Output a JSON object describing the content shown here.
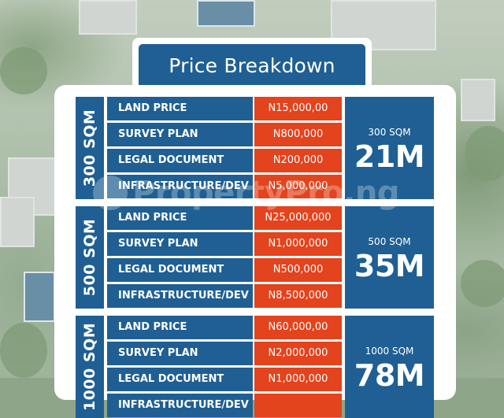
{
  "header": {
    "title": "Price Breakdown"
  },
  "watermark": "PropertyPro.ng",
  "sections": [
    {
      "label": "300 SQM",
      "rows": [
        {
          "item": "LAND PRICE",
          "price": "N15,000,00"
        },
        {
          "item": "SURVEY PLAN",
          "price": "N800,000"
        },
        {
          "item": "LEGAL DOCUMENT",
          "price": "N200,000"
        },
        {
          "item": "INFRASTRUCTURE/DEV",
          "price": "N5,000,000"
        }
      ],
      "total_label": "300 SQM",
      "total_amount": "21M"
    },
    {
      "label": "500 SQM",
      "rows": [
        {
          "item": "LAND PRICE",
          "price": "N25,000,000"
        },
        {
          "item": "SURVEY PLAN",
          "price": "N1,000,000"
        },
        {
          "item": "LEGAL DOCUMENT",
          "price": "N500,000"
        },
        {
          "item": "INFRASTRUCTURE/DEV",
          "price": "N8,500,000"
        }
      ],
      "total_label": "500 SQM",
      "total_amount": "35M"
    },
    {
      "label": "1000 SQM",
      "rows": [
        {
          "item": "LAND PRICE",
          "price": "N60,000,00"
        },
        {
          "item": "SURVEY PLAN",
          "price": "N2,000,000"
        },
        {
          "item": "LEGAL DOCUMENT",
          "price": "N1,000,000"
        },
        {
          "item": "INFRASTRUCTURE/DEV",
          "price": ""
        }
      ],
      "total_label": "1000 SQM",
      "total_amount": "78M"
    }
  ],
  "colors": {
    "blue": "#1f5f93",
    "orange": "#e3431d",
    "white": "#ffffff"
  }
}
